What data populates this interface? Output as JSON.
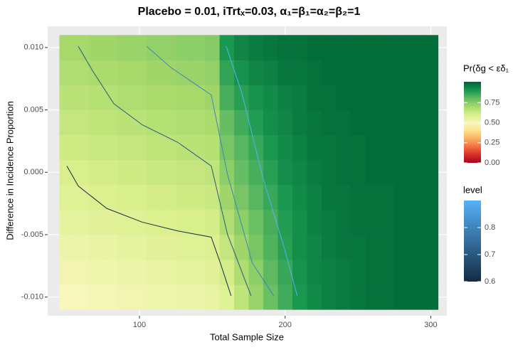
{
  "chart_data": {
    "type": "heatmap",
    "title": "Placebo = 0.01, iTrtₓ=0.03, α₁=β₁=α₂=β₂=1",
    "x_label": "Total Sample Size",
    "y_label": "Difference in Incidence Proportion",
    "x": [
      50,
      60,
      70,
      80,
      90,
      100,
      110,
      120,
      130,
      140,
      150,
      160,
      170,
      180,
      190,
      200,
      210,
      220,
      230,
      240,
      250,
      260,
      270,
      280,
      290,
      300
    ],
    "y": [
      -0.01,
      -0.008,
      -0.006,
      -0.004,
      -0.002,
      0.0,
      0.002,
      0.004,
      0.006,
      0.008,
      0.01
    ],
    "z": [
      [
        0.5,
        0.5,
        0.51,
        0.51,
        0.52,
        0.52,
        0.53,
        0.53,
        0.54,
        0.54,
        0.55,
        0.58,
        0.65,
        0.72,
        0.79,
        0.85,
        0.9,
        0.93,
        0.95,
        0.96,
        0.97,
        0.98,
        0.98,
        0.99,
        0.99,
        0.99
      ],
      [
        0.52,
        0.52,
        0.53,
        0.53,
        0.54,
        0.54,
        0.55,
        0.55,
        0.56,
        0.56,
        0.57,
        0.61,
        0.68,
        0.74,
        0.81,
        0.86,
        0.91,
        0.94,
        0.95,
        0.96,
        0.97,
        0.98,
        0.98,
        0.99,
        0.99,
        0.99
      ],
      [
        0.54,
        0.54,
        0.55,
        0.55,
        0.56,
        0.56,
        0.57,
        0.57,
        0.58,
        0.58,
        0.59,
        0.64,
        0.71,
        0.77,
        0.83,
        0.88,
        0.92,
        0.94,
        0.96,
        0.97,
        0.97,
        0.98,
        0.98,
        0.99,
        0.99,
        0.99
      ],
      [
        0.56,
        0.56,
        0.57,
        0.57,
        0.58,
        0.58,
        0.59,
        0.59,
        0.6,
        0.6,
        0.61,
        0.68,
        0.74,
        0.79,
        0.84,
        0.89,
        0.92,
        0.95,
        0.96,
        0.97,
        0.98,
        0.98,
        0.98,
        0.99,
        0.99,
        0.99
      ],
      [
        0.58,
        0.58,
        0.59,
        0.59,
        0.6,
        0.6,
        0.61,
        0.61,
        0.62,
        0.62,
        0.63,
        0.71,
        0.77,
        0.82,
        0.86,
        0.9,
        0.93,
        0.95,
        0.97,
        0.97,
        0.98,
        0.98,
        0.98,
        0.99,
        0.99,
        0.99
      ],
      [
        0.6,
        0.6,
        0.61,
        0.61,
        0.62,
        0.62,
        0.63,
        0.63,
        0.64,
        0.64,
        0.65,
        0.74,
        0.8,
        0.84,
        0.88,
        0.92,
        0.94,
        0.96,
        0.97,
        0.98,
        0.98,
        0.99,
        0.99,
        0.99,
        0.99,
        0.99
      ],
      [
        0.62,
        0.62,
        0.63,
        0.63,
        0.64,
        0.64,
        0.65,
        0.65,
        0.66,
        0.66,
        0.67,
        0.77,
        0.82,
        0.86,
        0.9,
        0.93,
        0.95,
        0.97,
        0.97,
        0.98,
        0.98,
        0.99,
        0.99,
        0.99,
        0.99,
        0.99
      ],
      [
        0.64,
        0.64,
        0.65,
        0.65,
        0.66,
        0.66,
        0.67,
        0.67,
        0.68,
        0.68,
        0.69,
        0.8,
        0.85,
        0.89,
        0.92,
        0.94,
        0.96,
        0.97,
        0.98,
        0.98,
        0.99,
        0.99,
        0.99,
        0.99,
        0.99,
        0.99
      ],
      [
        0.66,
        0.66,
        0.67,
        0.67,
        0.68,
        0.68,
        0.69,
        0.69,
        0.7,
        0.7,
        0.71,
        0.84,
        0.88,
        0.91,
        0.93,
        0.95,
        0.96,
        0.98,
        0.98,
        0.99,
        0.99,
        0.99,
        0.99,
        0.99,
        0.99,
        0.99
      ],
      [
        0.68,
        0.68,
        0.69,
        0.69,
        0.7,
        0.7,
        0.71,
        0.71,
        0.72,
        0.72,
        0.73,
        0.87,
        0.91,
        0.94,
        0.95,
        0.97,
        0.97,
        0.98,
        0.99,
        0.99,
        0.99,
        0.99,
        0.99,
        0.99,
        0.99,
        0.99
      ],
      [
        0.7,
        0.7,
        0.71,
        0.71,
        0.72,
        0.72,
        0.73,
        0.73,
        0.74,
        0.74,
        0.75,
        0.9,
        0.94,
        0.96,
        0.97,
        0.98,
        0.98,
        0.99,
        0.99,
        0.99,
        0.99,
        0.99,
        0.99,
        0.99,
        0.99,
        0.99
      ]
    ],
    "xlim": [
      37,
      311
    ],
    "ylim": [
      -0.0115,
      0.0117
    ],
    "xticks": [
      100,
      200,
      300
    ],
    "yticks": [
      {
        "value": -0.01,
        "label": "-0.010"
      },
      {
        "value": -0.005,
        "label": "-0.005"
      },
      {
        "value": 0,
        "label": "0.000"
      },
      {
        "value": 0.005,
        "label": "0.005"
      },
      {
        "value": 0.01,
        "label": "0.010"
      }
    ],
    "grid": true,
    "colorscale": [
      [
        0,
        "#a50026"
      ],
      [
        0.1,
        "#d73027"
      ],
      [
        0.2,
        "#f46d43"
      ],
      [
        0.3,
        "#fdae61"
      ],
      [
        0.4,
        "#fee08b"
      ],
      [
        0.5,
        "#f7f7bb"
      ],
      [
        0.6,
        "#d9ef8b"
      ],
      [
        0.7,
        "#a6d96a"
      ],
      [
        0.8,
        "#66bd63"
      ],
      [
        0.9,
        "#1a9850"
      ],
      [
        1,
        "#006837"
      ]
    ],
    "fill_legend": {
      "title": "Pr(δg < εδ₁",
      "lim": [
        0,
        1.01
      ],
      "ticks": [
        {
          "value": 0,
          "label": "0.00"
        },
        {
          "value": 0.25,
          "label": "0.25"
        },
        {
          "value": 0.5,
          "label": "0.50"
        },
        {
          "value": 0.75,
          "label": "0.75"
        }
      ]
    },
    "contours": [
      {
        "level": 0.6,
        "x": [
          50.2,
          58,
          77.6,
          102,
          126.3,
          149.3,
          155.6,
          162.9
        ],
        "y": [
          0.0005,
          -0.0011,
          -0.0029,
          -0.004,
          -0.0047,
          -0.0052,
          -0.0073,
          -0.0099
        ]
      },
      {
        "level": 0.7,
        "x": [
          58,
          68,
          82.4,
          102,
          126.3,
          149.3,
          160.5,
          176.6
        ],
        "y": [
          0.0101,
          0.0081,
          0.0055,
          0.0038,
          0.0024,
          0.0005,
          -0.005,
          -0.0099
        ]
      },
      {
        "level": 0.8,
        "x": [
          104.9,
          121.5,
          149.3,
          160.5,
          177.6,
          192.2
        ],
        "y": [
          0.0101,
          0.0084,
          0.0062,
          -0.0002,
          -0.0073,
          -0.0099
        ]
      },
      {
        "level": 0.9,
        "x": [
          159.5,
          170.2,
          184.9,
          199.5,
          208.3
        ],
        "y": [
          0.0101,
          0.0064,
          -0.0005,
          -0.0061,
          -0.0099
        ]
      }
    ],
    "level_legend": {
      "title": "level",
      "lim": [
        0.6,
        0.9
      ],
      "ticks": [
        0.6,
        0.7,
        0.8
      ],
      "colors": [
        "#132B43",
        "#56B1F7"
      ]
    }
  }
}
